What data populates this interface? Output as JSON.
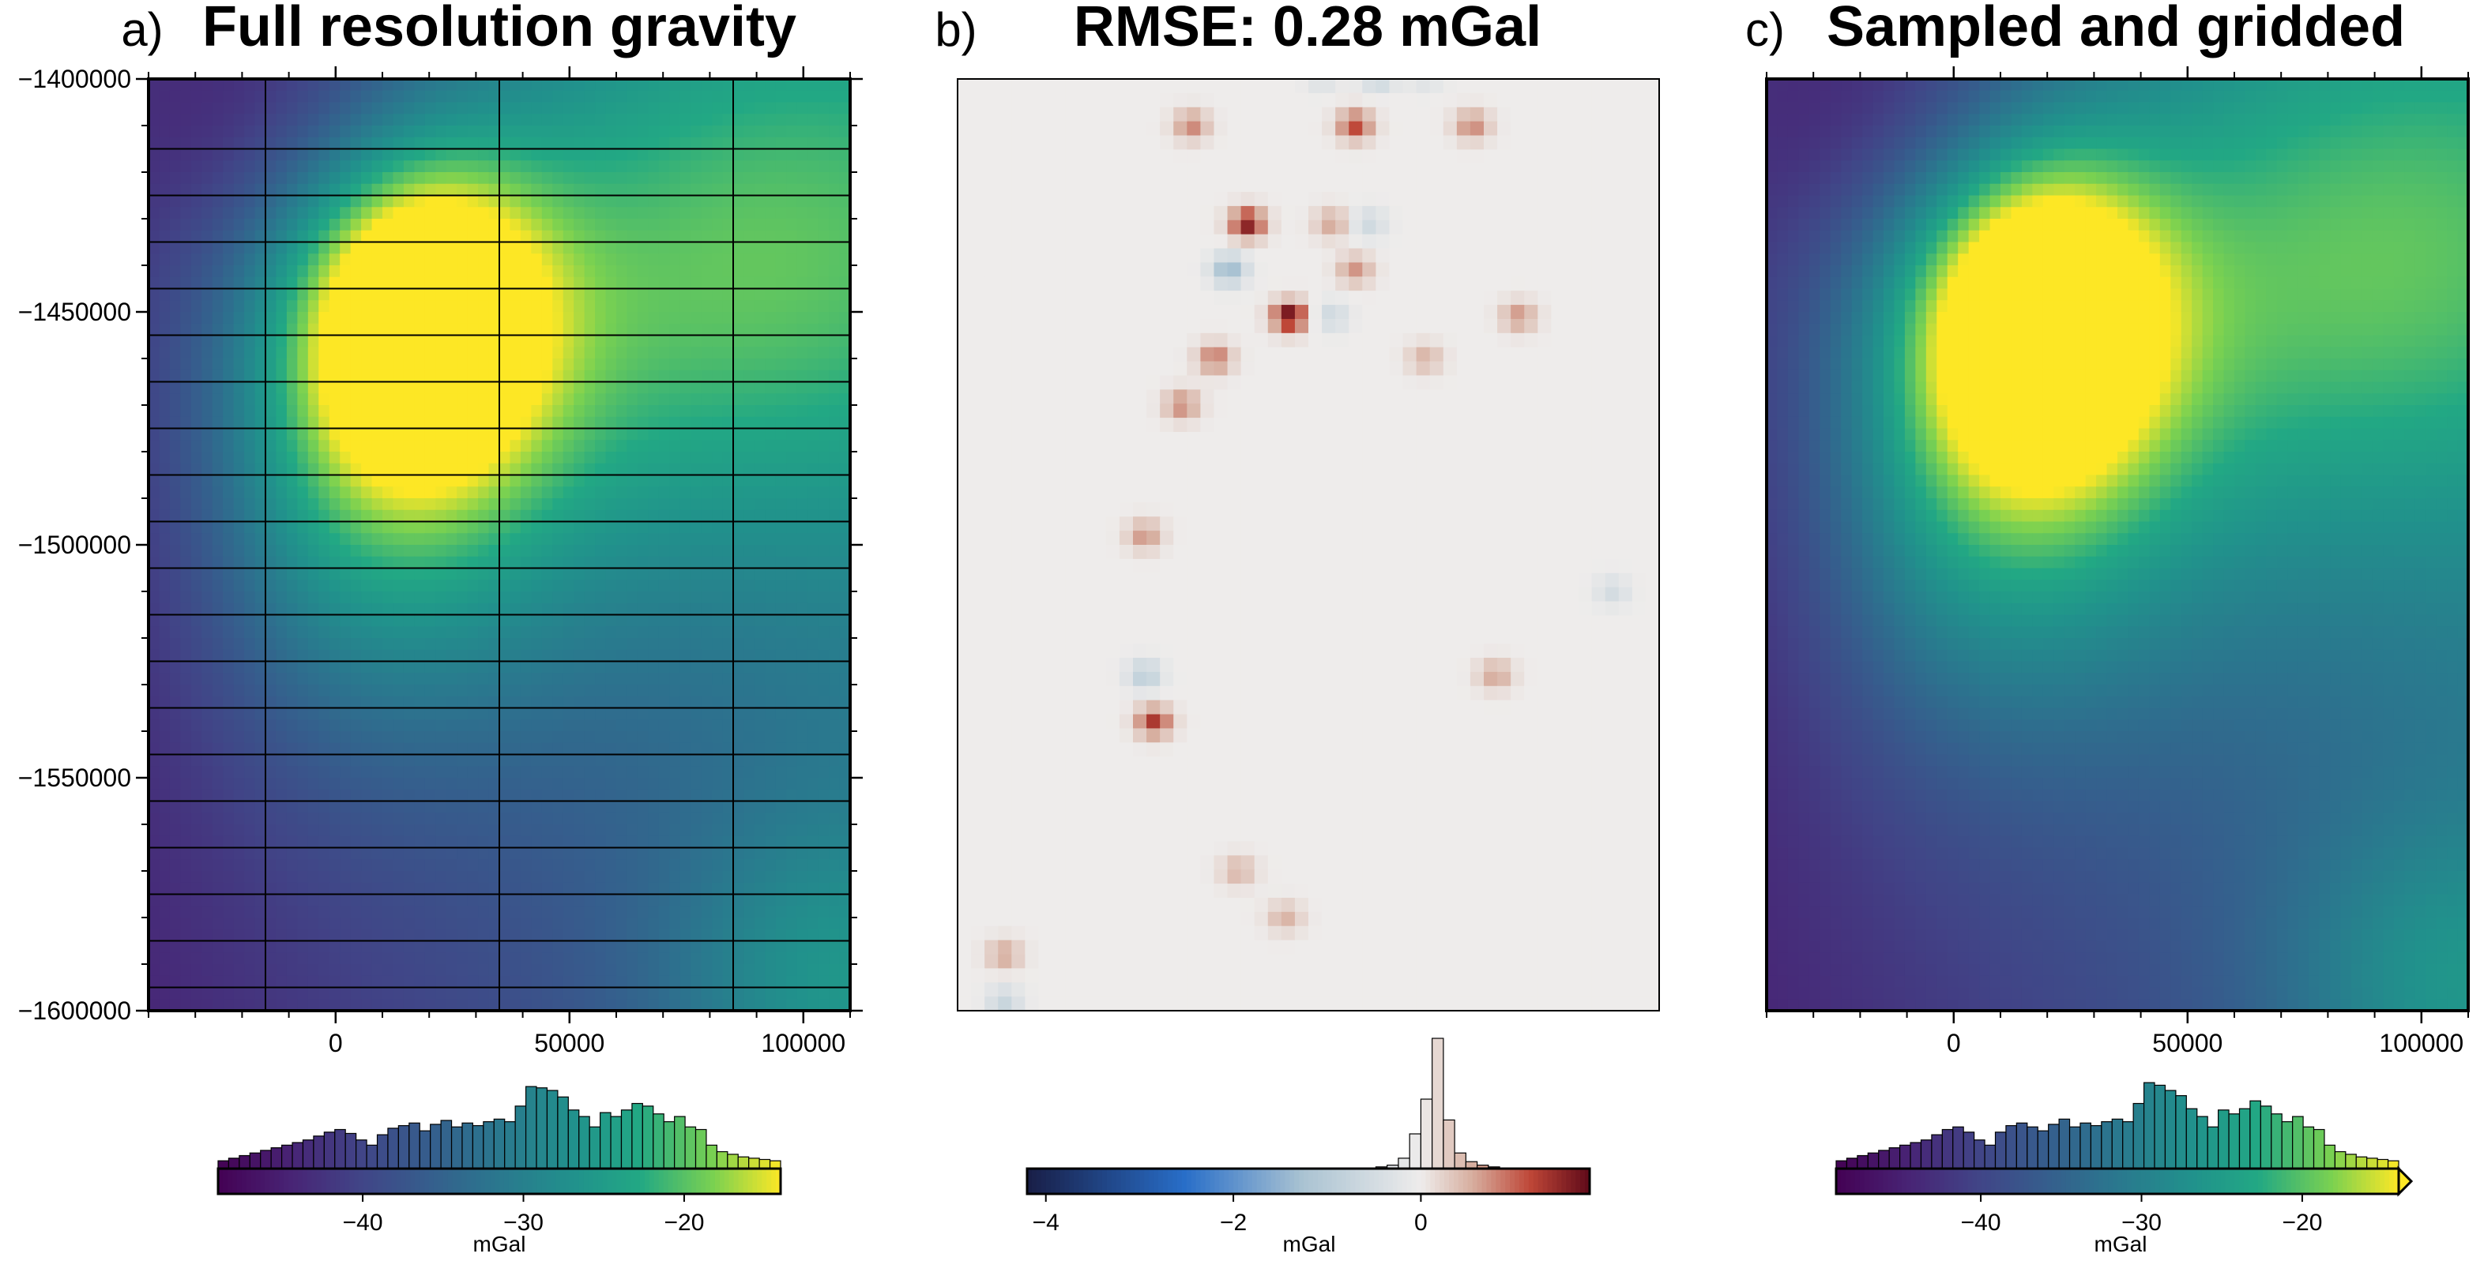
{
  "figure": {
    "background": "#ffffff",
    "axis_color": "#000000"
  },
  "chart_data": [
    {
      "id": "a",
      "type": "heatmap",
      "panel_label": "a)",
      "title": "Full resolution gravity",
      "colormap": "viridis",
      "x_range": [
        -40000,
        110000
      ],
      "y_range": [
        -1600000,
        -1400000
      ],
      "x_ticks": [
        0,
        50000,
        100000
      ],
      "x_tick_labels": [
        "0",
        "50000",
        "100000"
      ],
      "y_ticks": [
        -1400000,
        -1450000,
        -1500000,
        -1550000,
        -1600000
      ],
      "y_tick_labels": [
        "-1400000",
        "-1450000",
        "-1500000",
        "-1550000",
        "-1600000"
      ],
      "grid_overlay": {
        "vertical_lines_x": [
          -15000,
          35000,
          85000
        ],
        "horizontal_lines_y": [
          -1415000,
          -1425000,
          -1435000,
          -1445000,
          -1455000,
          -1465000,
          -1475000,
          -1485000,
          -1495000,
          -1505000,
          -1515000,
          -1525000,
          -1535000,
          -1545000,
          -1555000,
          -1565000,
          -1575000,
          -1585000,
          -1595000
        ]
      },
      "colorbar": {
        "label": "mGal",
        "range": [
          -49,
          -14
        ],
        "ticks": [
          -40,
          -30,
          -20
        ],
        "tick_labels": [
          "-40",
          "-30",
          "-20"
        ],
        "extend_max": false,
        "histogram": [
          0.06,
          0.08,
          0.1,
          0.12,
          0.14,
          0.16,
          0.18,
          0.2,
          0.22,
          0.25,
          0.28,
          0.3,
          0.27,
          0.22,
          0.18,
          0.26,
          0.31,
          0.33,
          0.35,
          0.29,
          0.34,
          0.37,
          0.32,
          0.35,
          0.33,
          0.36,
          0.38,
          0.36,
          0.48,
          0.63,
          0.62,
          0.6,
          0.55,
          0.45,
          0.4,
          0.32,
          0.43,
          0.4,
          0.45,
          0.5,
          0.48,
          0.42,
          0.36,
          0.4,
          0.32,
          0.3,
          0.18,
          0.13,
          0.11,
          0.09,
          0.08,
          0.07,
          0.06
        ]
      },
      "field_blobs": [
        {
          "x": 18000,
          "y": -1450000,
          "sx": 18000,
          "sy": 25000,
          "amp": 22
        },
        {
          "x": 40000,
          "y": -1450000,
          "sx": 60000,
          "sy": 45000,
          "amp": 10
        },
        {
          "x": 5000,
          "y": -1485000,
          "sx": 30000,
          "sy": 40000,
          "amp": 12
        },
        {
          "x": 100000,
          "y": -1435000,
          "sx": 40000,
          "sy": 40000,
          "amp": 6
        },
        {
          "x": 105000,
          "y": -1595000,
          "sx": 25000,
          "sy": 25000,
          "amp": 8
        },
        {
          "x": -5000,
          "y": -1405000,
          "sx": 30000,
          "sy": 25000,
          "amp": -8
        },
        {
          "x": -35000,
          "y": -1470000,
          "sx": 20000,
          "sy": 45000,
          "amp": -6
        }
      ]
    },
    {
      "id": "b",
      "type": "heatmap",
      "panel_label": "b)",
      "title": "RMSE: 0.28 mGal",
      "colormap": "balance",
      "x_range": [
        -40000,
        110000
      ],
      "y_range": [
        -1600000,
        -1400000
      ],
      "colorbar": {
        "label": "mGal",
        "range": [
          -4.2,
          1.8
        ],
        "ticks": [
          -4,
          -2,
          0
        ],
        "tick_labels": [
          "-4",
          "-2",
          "0"
        ],
        "extend_max": false,
        "histogram": [
          0.0,
          0.0,
          0.0,
          0.0,
          0.0,
          0.0,
          0.0,
          0.0,
          0.0,
          0.0,
          0.0,
          0.0,
          0.0,
          0.0,
          0.0,
          0.0,
          0.0,
          0.0,
          0.0,
          0.0,
          0.0,
          0.0,
          0.0,
          0.0,
          0.0,
          0.0,
          0.0,
          0.0,
          0.0,
          0.0,
          0.0,
          0.01,
          0.02,
          0.06,
          0.2,
          0.4,
          0.75,
          0.28,
          0.09,
          0.04,
          0.02,
          0.01,
          0.0,
          0.0,
          0.0,
          0.0,
          0.0,
          0.0,
          0.0,
          0.0
        ]
      },
      "residual_spots": [
        {
          "x": 22000,
          "y": -1431000,
          "v": 1.6
        },
        {
          "x": 31000,
          "y": -1451000,
          "v": 1.8
        },
        {
          "x": 18000,
          "y": -1441000,
          "v": -1.4
        },
        {
          "x": 15000,
          "y": -1460000,
          "v": 0.9
        },
        {
          "x": 8000,
          "y": -1470000,
          "v": 0.8
        },
        {
          "x": 2000,
          "y": -1538000,
          "v": 1.3
        },
        {
          "x": 0,
          "y": -1528000,
          "v": -0.9
        },
        {
          "x": 45000,
          "y": -1410000,
          "v": 1.2
        },
        {
          "x": 10000,
          "y": -1410000,
          "v": 0.8
        },
        {
          "x": 70000,
          "y": -1410000,
          "v": 0.8
        },
        {
          "x": 40000,
          "y": -1431000,
          "v": 0.6
        },
        {
          "x": 48000,
          "y": -1431000,
          "v": -0.6
        },
        {
          "x": 40000,
          "y": -1451000,
          "v": -0.6
        },
        {
          "x": 45000,
          "y": -1441000,
          "v": 0.7
        },
        {
          "x": 80000,
          "y": -1451000,
          "v": 0.7
        },
        {
          "x": 60000,
          "y": -1460000,
          "v": 0.5
        },
        {
          "x": 0,
          "y": -1498000,
          "v": 0.7
        },
        {
          "x": 75000,
          "y": -1528000,
          "v": 0.6
        },
        {
          "x": 100000,
          "y": -1510000,
          "v": -0.5
        },
        {
          "x": 20000,
          "y": -1570000,
          "v": 0.5
        },
        {
          "x": 30000,
          "y": -1580000,
          "v": 0.5
        },
        {
          "x": -30000,
          "y": -1588000,
          "v": 0.6
        },
        {
          "x": -30000,
          "y": -1598000,
          "v": -0.7
        },
        {
          "x": 50000,
          "y": -1398000,
          "v": -1.8
        },
        {
          "x": 38000,
          "y": -1398000,
          "v": -1.0
        },
        {
          "x": 60000,
          "y": -1398000,
          "v": -0.9
        }
      ]
    },
    {
      "id": "c",
      "type": "heatmap",
      "panel_label": "c)",
      "title": "Sampled and gridded",
      "colormap": "viridis",
      "x_range": [
        -40000,
        110000
      ],
      "y_range": [
        -1600000,
        -1400000
      ],
      "x_ticks": [
        0,
        50000,
        100000
      ],
      "x_tick_labels": [
        "0",
        "50000",
        "100000"
      ],
      "colorbar": {
        "label": "mGal",
        "range": [
          -49,
          -14
        ],
        "ticks": [
          -40,
          -30,
          -20
        ],
        "tick_labels": [
          "-40",
          "-30",
          "-20"
        ],
        "extend_max": true,
        "histogram": [
          0.06,
          0.08,
          0.1,
          0.12,
          0.14,
          0.16,
          0.18,
          0.2,
          0.22,
          0.26,
          0.3,
          0.32,
          0.28,
          0.22,
          0.18,
          0.28,
          0.33,
          0.35,
          0.32,
          0.29,
          0.34,
          0.38,
          0.32,
          0.35,
          0.33,
          0.36,
          0.38,
          0.36,
          0.5,
          0.66,
          0.64,
          0.6,
          0.56,
          0.46,
          0.4,
          0.32,
          0.45,
          0.42,
          0.46,
          0.52,
          0.48,
          0.42,
          0.36,
          0.4,
          0.32,
          0.3,
          0.18,
          0.13,
          0.11,
          0.09,
          0.08,
          0.07,
          0.06
        ]
      },
      "field_blobs": [
        {
          "x": 18000,
          "y": -1450000,
          "sx": 18000,
          "sy": 25000,
          "amp": 22
        },
        {
          "x": 40000,
          "y": -1450000,
          "sx": 60000,
          "sy": 45000,
          "amp": 10
        },
        {
          "x": 5000,
          "y": -1485000,
          "sx": 30000,
          "sy": 40000,
          "amp": 12
        },
        {
          "x": 100000,
          "y": -1435000,
          "sx": 40000,
          "sy": 40000,
          "amp": 6
        },
        {
          "x": 105000,
          "y": -1595000,
          "sx": 25000,
          "sy": 25000,
          "amp": 8
        },
        {
          "x": -5000,
          "y": -1405000,
          "sx": 30000,
          "sy": 25000,
          "amp": -8
        },
        {
          "x": -35000,
          "y": -1470000,
          "sx": 20000,
          "sy": 45000,
          "amp": -6
        }
      ]
    }
  ]
}
